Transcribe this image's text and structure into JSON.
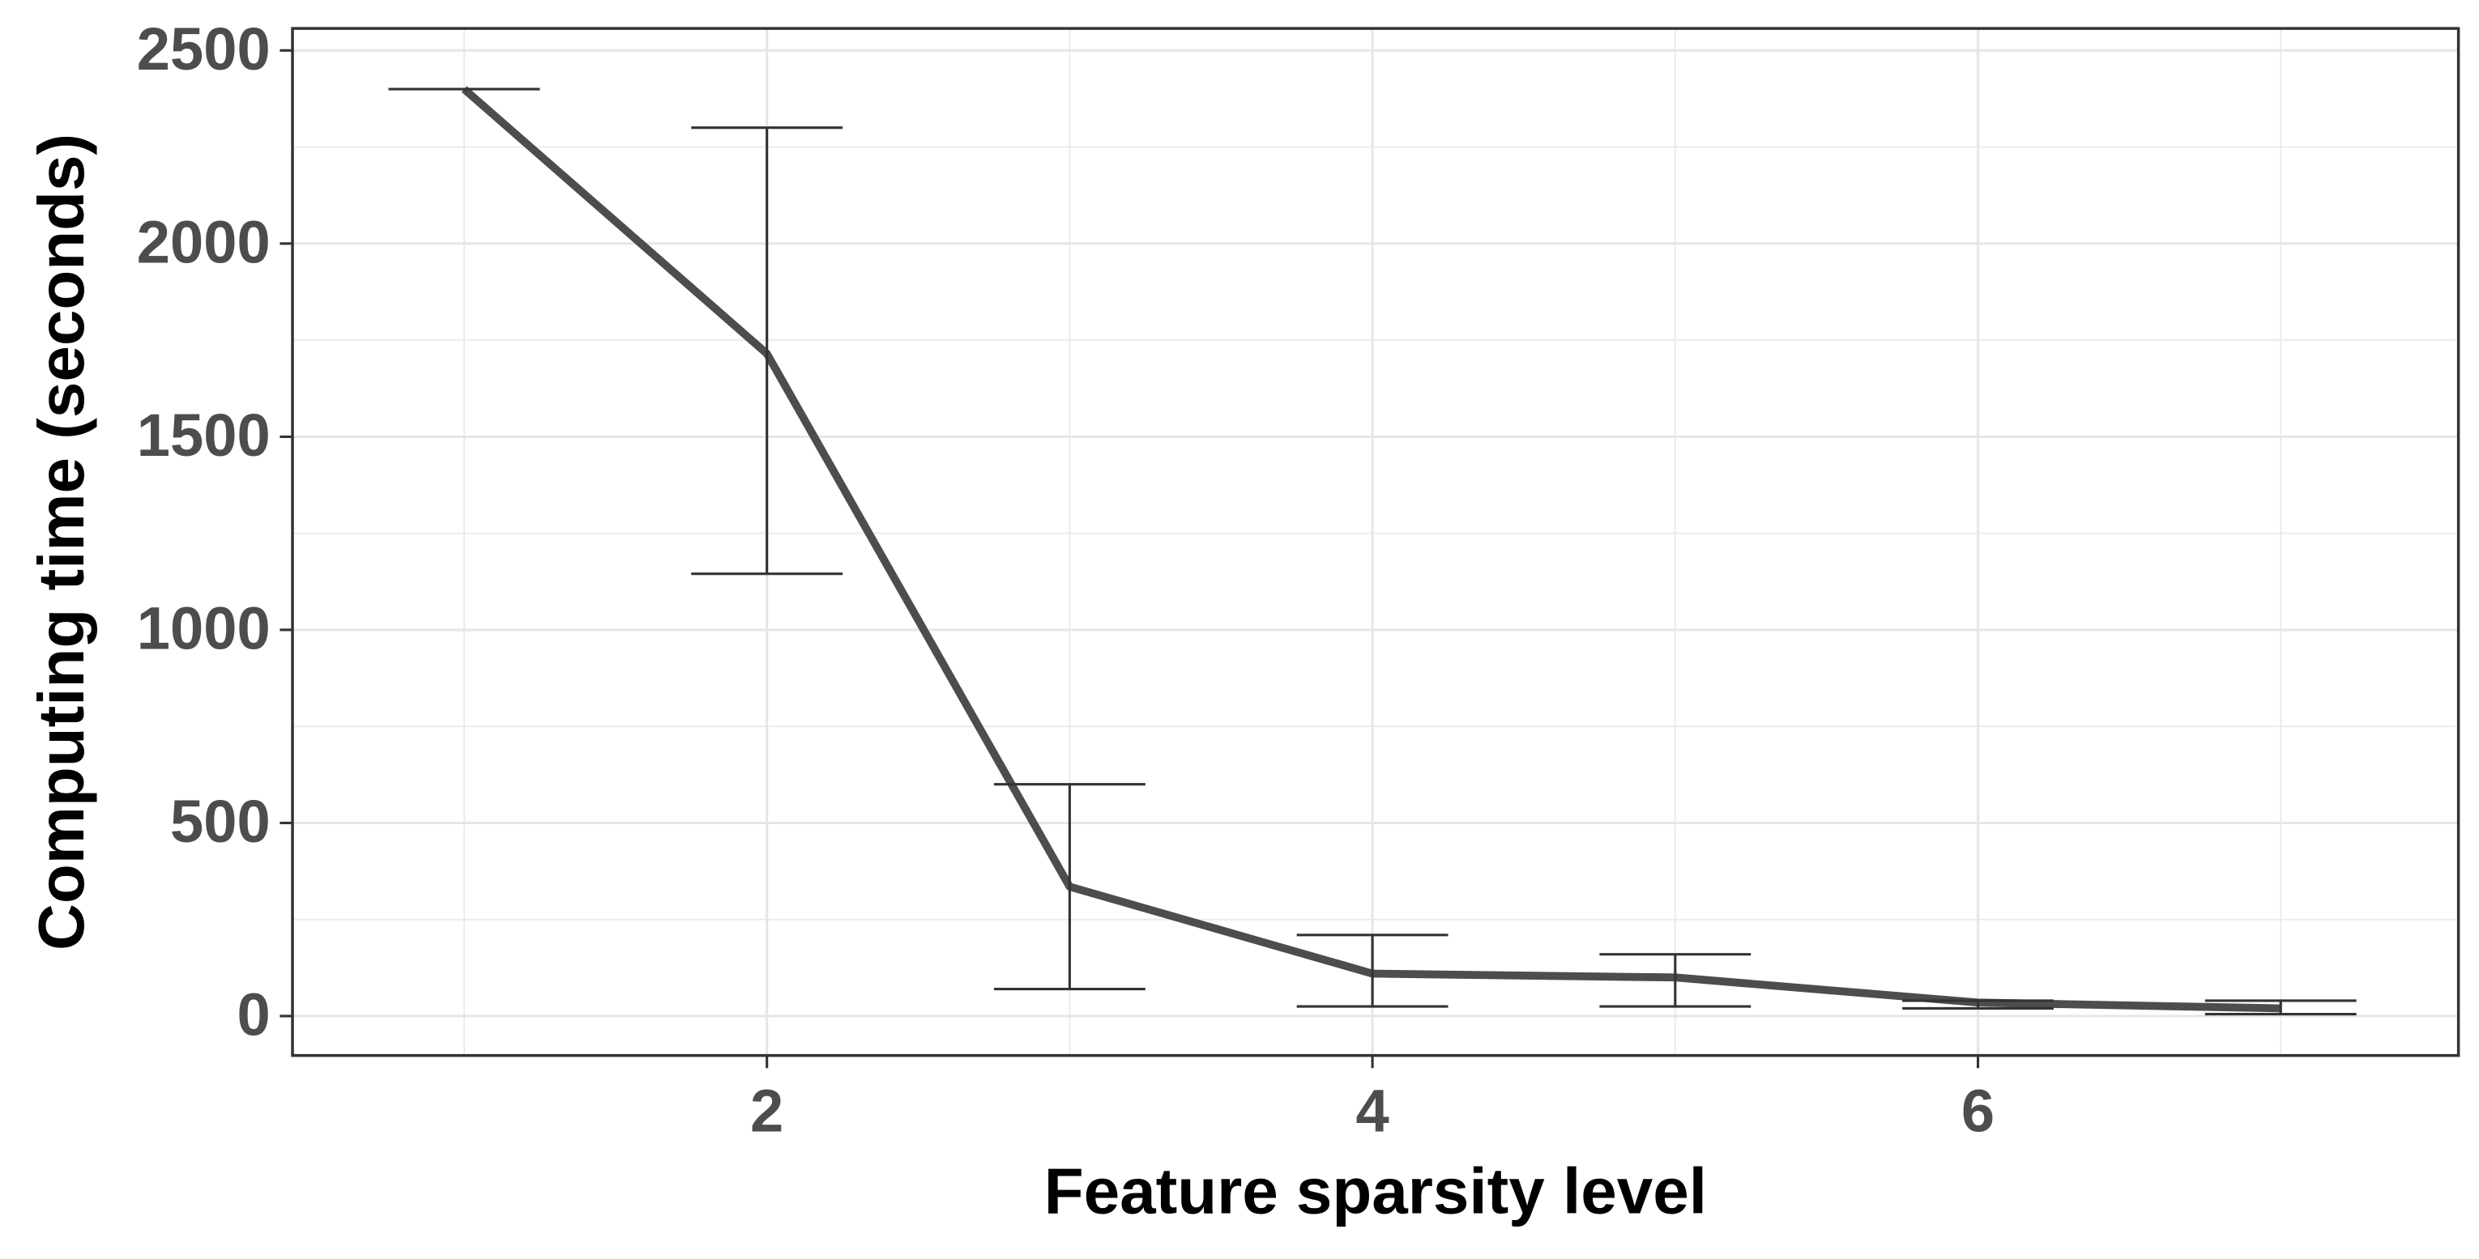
{
  "chart_data": {
    "type": "line",
    "x_label": "Feature sparsity level",
    "y_label": "Computing time (seconds)",
    "x": [
      1,
      2,
      3,
      4,
      5,
      6,
      7
    ],
    "values": [
      2400,
      1715,
      335,
      110,
      100,
      35,
      20
    ],
    "lower": [
      2400,
      1145,
      70,
      25,
      25,
      20,
      5
    ],
    "upper": [
      2400,
      2300,
      600,
      210,
      160,
      40,
      40
    ],
    "color": "#4d4d4d",
    "errorbar_color": "#333333",
    "xlim": [
      0.433,
      7.587
    ],
    "ylim": [
      -102,
      2557
    ],
    "xticks": [
      2,
      4,
      6
    ],
    "yticks": [
      0,
      500,
      1000,
      1500,
      2000,
      2500
    ],
    "xminor": [
      1,
      3,
      5,
      7
    ],
    "yminor": [
      250,
      750,
      1250,
      1750,
      2250
    ],
    "grid": true
  }
}
